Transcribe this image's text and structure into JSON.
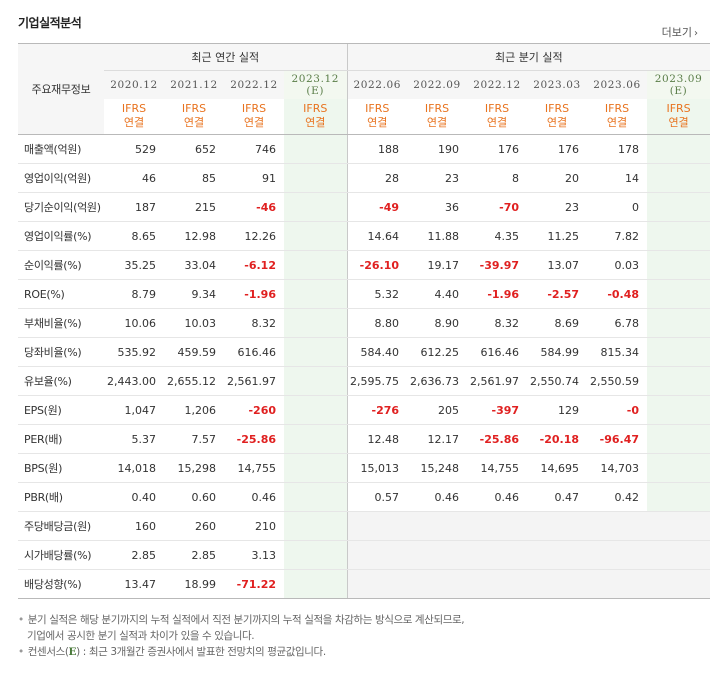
{
  "title": "기업실적분석",
  "more_label": "더보기",
  "more_arrow": "›",
  "row_header": "주요재무정보",
  "groups": {
    "annual": "최근 연간 실적",
    "quarterly": "최근 분기 실적"
  },
  "annual_periods": [
    {
      "label": "2020.12",
      "sub": ""
    },
    {
      "label": "2021.12",
      "sub": ""
    },
    {
      "label": "2022.12",
      "sub": ""
    },
    {
      "label": "2023.12",
      "sub": "(E)"
    }
  ],
  "quarter_periods": [
    {
      "label": "2022.06",
      "sub": ""
    },
    {
      "label": "2022.09",
      "sub": ""
    },
    {
      "label": "2022.12",
      "sub": ""
    },
    {
      "label": "2023.03",
      "sub": ""
    },
    {
      "label": "2023.06",
      "sub": ""
    },
    {
      "label": "2023.09",
      "sub": "(E)"
    }
  ],
  "basis": {
    "line1": "IFRS",
    "line2": "연결"
  },
  "rows": [
    {
      "label": "매출액(억원)",
      "annual": [
        "529",
        "652",
        "746",
        ""
      ],
      "quarterly": [
        "188",
        "190",
        "176",
        "176",
        "178",
        ""
      ],
      "group_start": true
    },
    {
      "label": "영업이익(억원)",
      "annual": [
        "46",
        "85",
        "91",
        ""
      ],
      "quarterly": [
        "28",
        "23",
        "8",
        "20",
        "14",
        ""
      ]
    },
    {
      "label": "당기순이익(억원)",
      "annual": [
        "187",
        "215",
        "-46",
        ""
      ],
      "quarterly": [
        "-49",
        "36",
        "-70",
        "23",
        "0",
        ""
      ]
    },
    {
      "label": "영업이익률(%)",
      "annual": [
        "8.65",
        "12.98",
        "12.26",
        ""
      ],
      "quarterly": [
        "14.64",
        "11.88",
        "4.35",
        "11.25",
        "7.82",
        ""
      ],
      "group_start": true
    },
    {
      "label": "순이익률(%)",
      "annual": [
        "35.25",
        "33.04",
        "-6.12",
        ""
      ],
      "quarterly": [
        "-26.10",
        "19.17",
        "-39.97",
        "13.07",
        "0.03",
        ""
      ]
    },
    {
      "label": "ROE(%)",
      "annual": [
        "8.79",
        "9.34",
        "-1.96",
        ""
      ],
      "quarterly": [
        "5.32",
        "4.40",
        "-1.96",
        "-2.57",
        "-0.48",
        ""
      ]
    },
    {
      "label": "부채비율(%)",
      "annual": [
        "10.06",
        "10.03",
        "8.32",
        ""
      ],
      "quarterly": [
        "8.80",
        "8.90",
        "8.32",
        "8.69",
        "6.78",
        ""
      ],
      "group_start": true
    },
    {
      "label": "당좌비율(%)",
      "annual": [
        "535.92",
        "459.59",
        "616.46",
        ""
      ],
      "quarterly": [
        "584.40",
        "612.25",
        "616.46",
        "584.99",
        "815.34",
        ""
      ]
    },
    {
      "label": "유보율(%)",
      "annual": [
        "2,443.00",
        "2,655.12",
        "2,561.97",
        ""
      ],
      "quarterly": [
        "2,595.75",
        "2,636.73",
        "2,561.97",
        "2,550.74",
        "2,550.59",
        ""
      ]
    },
    {
      "label": "EPS(원)",
      "annual": [
        "1,047",
        "1,206",
        "-260",
        ""
      ],
      "quarterly": [
        "-276",
        "205",
        "-397",
        "129",
        "-0",
        ""
      ],
      "group_start": true
    },
    {
      "label": "PER(배)",
      "annual": [
        "5.37",
        "7.57",
        "-25.86",
        ""
      ],
      "quarterly": [
        "12.48",
        "12.17",
        "-25.86",
        "-20.18",
        "-96.47",
        ""
      ]
    },
    {
      "label": "BPS(원)",
      "annual": [
        "14,018",
        "15,298",
        "14,755",
        ""
      ],
      "quarterly": [
        "15,013",
        "15,248",
        "14,755",
        "14,695",
        "14,703",
        ""
      ]
    },
    {
      "label": "PBR(배)",
      "annual": [
        "0.40",
        "0.60",
        "0.46",
        ""
      ],
      "quarterly": [
        "0.57",
        "0.46",
        "0.46",
        "0.47",
        "0.42",
        ""
      ]
    },
    {
      "label": "주당배당금(원)",
      "annual": [
        "160",
        "260",
        "210",
        ""
      ],
      "quarterly": null,
      "group_start": true
    },
    {
      "label": "시가배당률(%)",
      "annual": [
        "2.85",
        "2.85",
        "3.13",
        ""
      ],
      "quarterly": null
    },
    {
      "label": "배당성향(%)",
      "annual": [
        "13.47",
        "18.99",
        "-71.22",
        ""
      ],
      "quarterly": null
    }
  ],
  "notes": {
    "note1_line1": "분기 실적은 해당 분기까지의 누적 실적에서 직전 분기까지의 누적 실적을 차감하는 방식으로 계산되므로,",
    "note1_line2": "기업에서 공시한 분기 실적과 차이가 있을 수 있습니다.",
    "note2_pre": "컨센서스(",
    "note2_e": "E",
    "note2_post": ") : 최근 3개월간 증권사에서 발표한 전망치의 평균값입니다."
  },
  "colors": {
    "negative": "#e02020",
    "ifrs": "#e8731f",
    "estimate_bg": "#eef7ee",
    "header_bg": "#f6f6f6"
  }
}
